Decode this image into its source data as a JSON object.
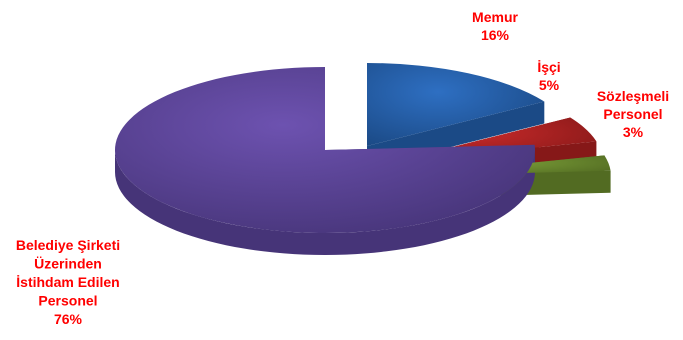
{
  "chart_data": {
    "type": "pie",
    "three_d": true,
    "exploded": true,
    "legend": "none",
    "slices": [
      {
        "label_lines": [
          "Memur",
          "16%"
        ],
        "value": 16,
        "color": "#2e6fc2",
        "side_color": "#1b4a86"
      },
      {
        "label_lines": [
          "İşçi",
          "5%"
        ],
        "value": 5,
        "color": "#c62a2a",
        "side_color": "#861818"
      },
      {
        "label_lines": [
          "Sözleşmeli",
          "Personel",
          "3%"
        ],
        "value": 3,
        "color": "#7ea23a",
        "side_color": "#526b22"
      },
      {
        "label_lines": [
          "Belediye Şirketi",
          "Üzerinden",
          "İstihdam Edilen",
          "Personel",
          "76%"
        ],
        "value": 76,
        "color": "#6d52b0",
        "side_color": "#463478"
      }
    ],
    "label_color": "#ff0000"
  }
}
